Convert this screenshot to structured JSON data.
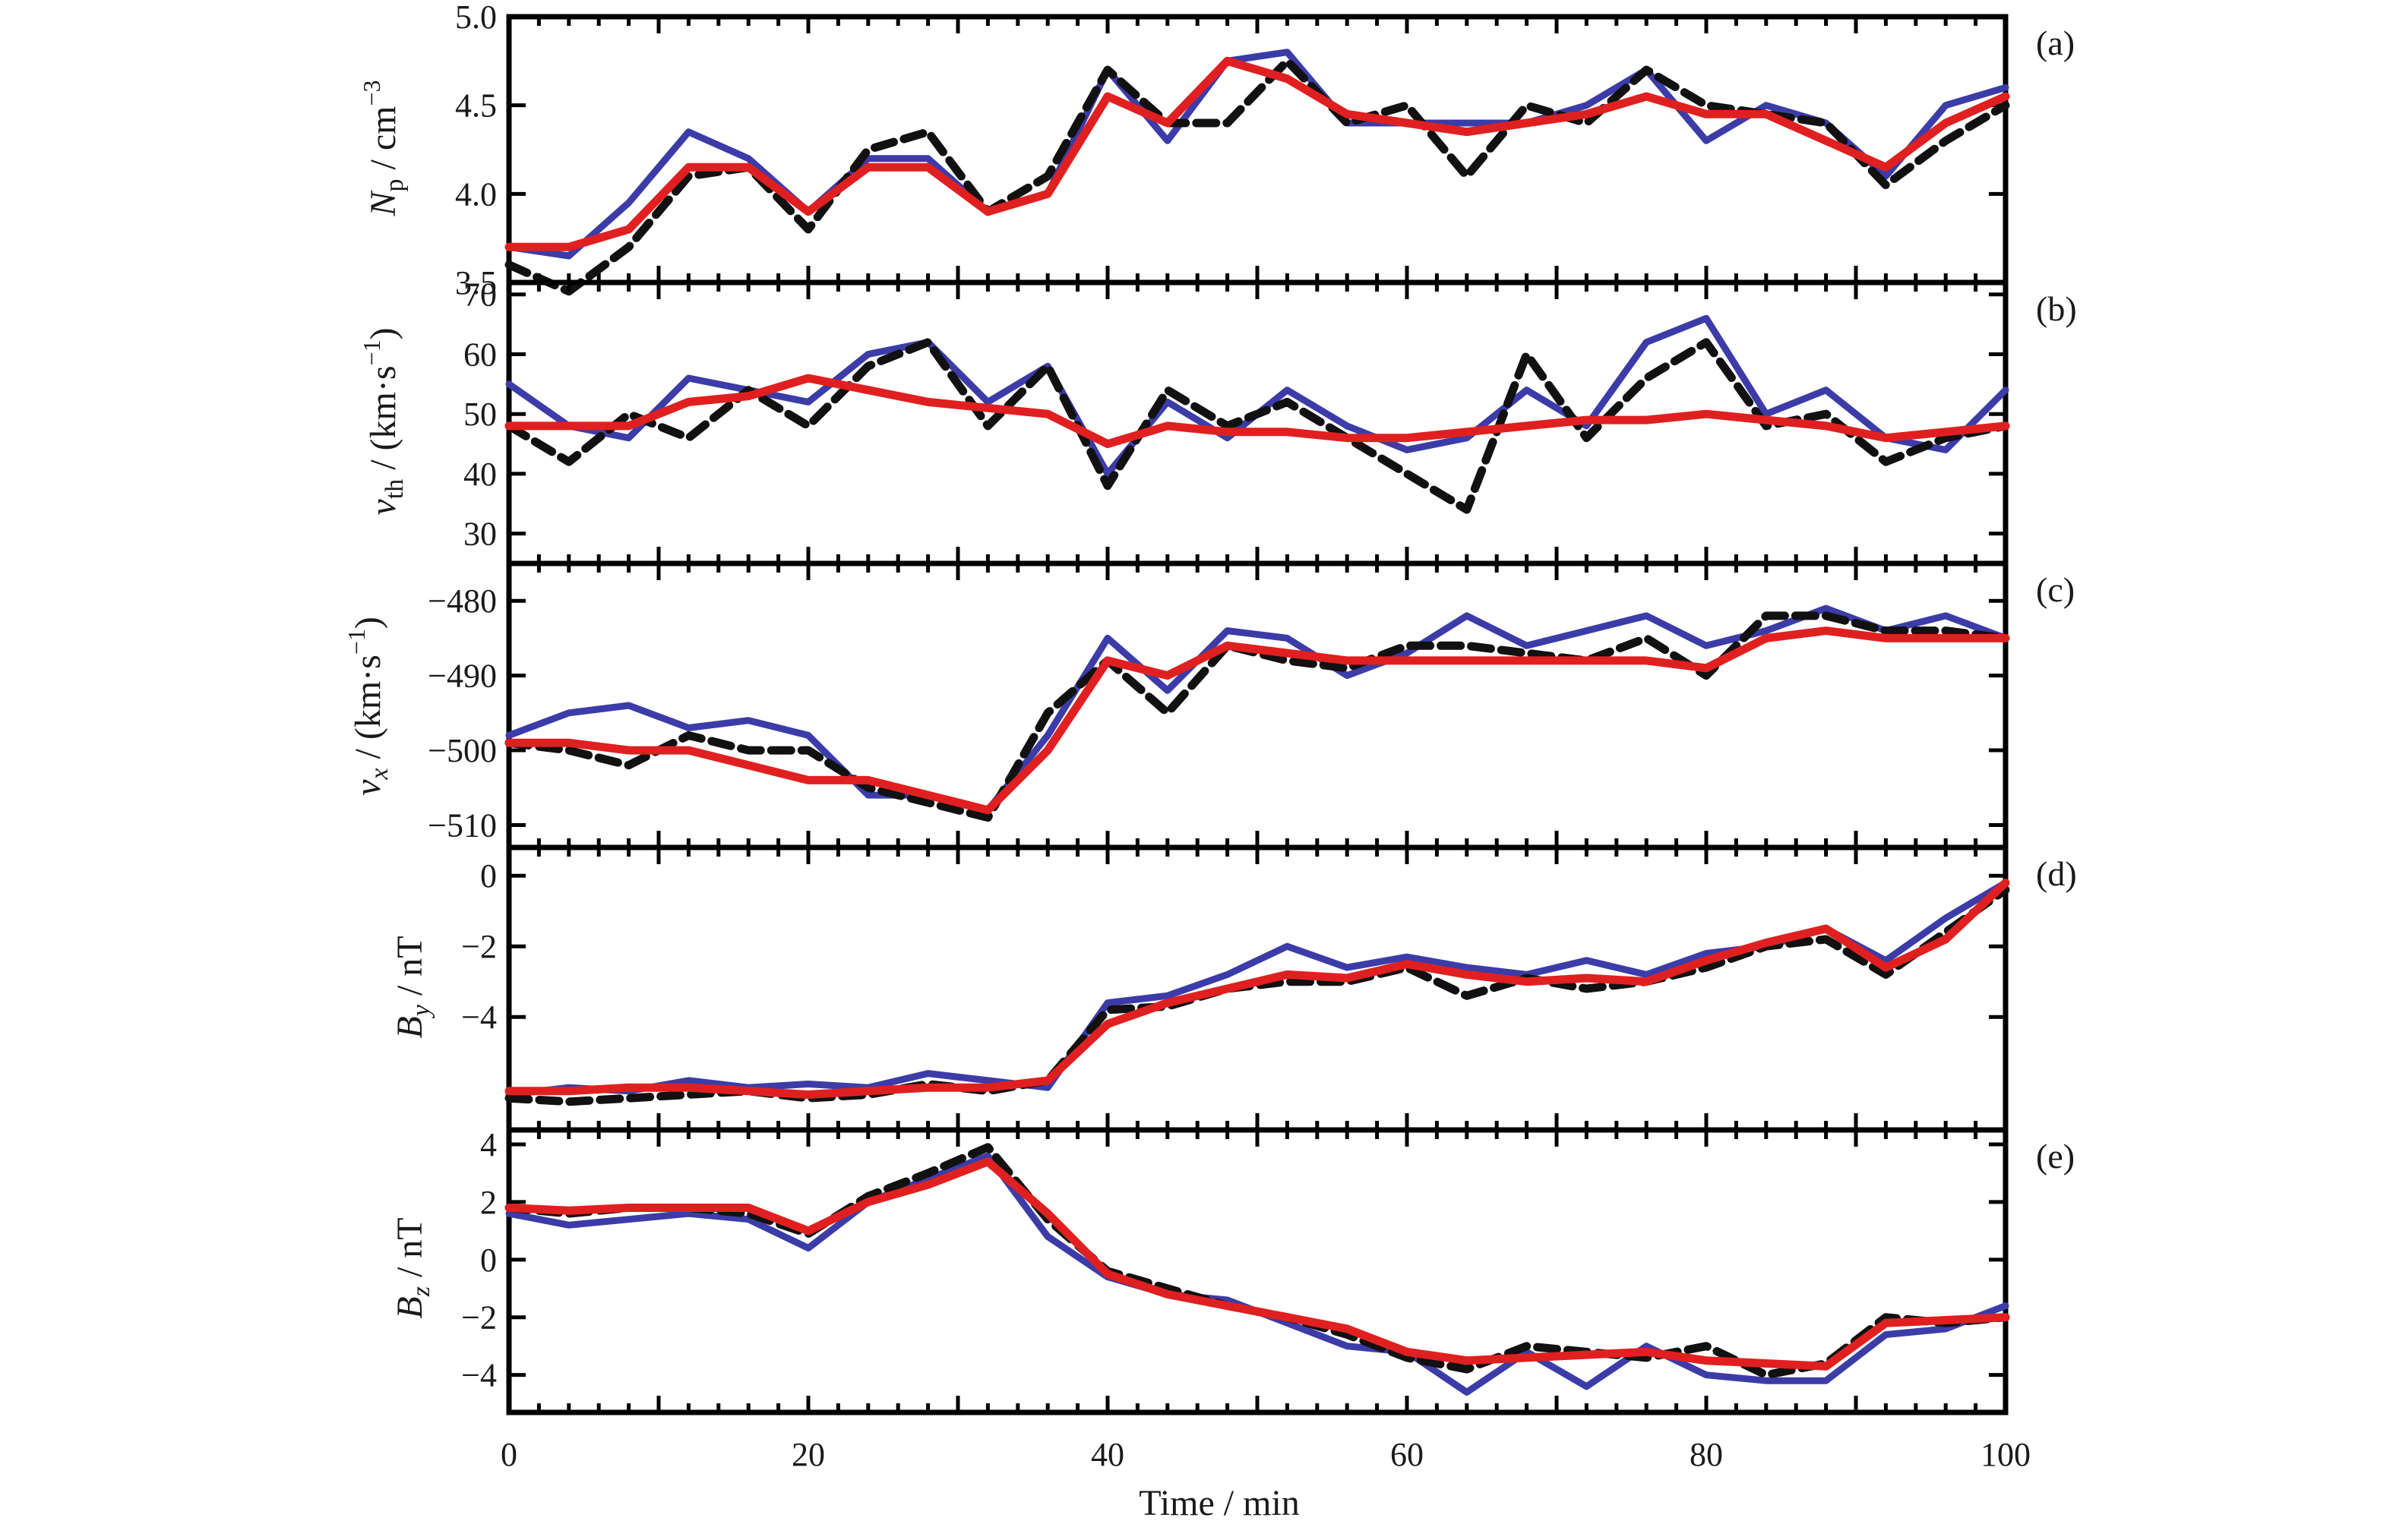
{
  "chart_data": {
    "type": "line",
    "xlabel": "Time / min",
    "xlim": [
      0,
      100
    ],
    "x_ticks": [
      "0",
      "20",
      "40",
      "60",
      "80",
      "100"
    ],
    "x": [
      0,
      4,
      8,
      12,
      16,
      20,
      24,
      28,
      32,
      36,
      40,
      44,
      48,
      52,
      56,
      60,
      64,
      68,
      72,
      76,
      80,
      84,
      88,
      92,
      96,
      100
    ],
    "series_style": [
      {
        "color": "#3c3ca8",
        "dash": "solid"
      },
      {
        "color": "#111111",
        "dash": "dashed"
      },
      {
        "color": "#e02020",
        "dash": "solid"
      }
    ],
    "panels": [
      {
        "tag": "(a)",
        "ylim": [
          3.5,
          5.0
        ],
        "y_ticks": [
          "3.5",
          "4.0",
          "4.5",
          "5.0"
        ],
        "series": [
          {
            "values": [
              3.7,
              3.65,
              3.95,
              4.35,
              4.2,
              3.9,
              4.2,
              4.2,
              3.9,
              4.0,
              4.7,
              4.3,
              4.75,
              4.8,
              4.4,
              4.4,
              4.4,
              4.4,
              4.5,
              4.7,
              4.3,
              4.5,
              4.4,
              4.1,
              4.5,
              4.6
            ]
          },
          {
            "values": [
              3.6,
              3.45,
              3.7,
              4.1,
              4.15,
              3.8,
              4.25,
              4.35,
              3.9,
              4.1,
              4.7,
              4.4,
              4.4,
              4.75,
              4.4,
              4.5,
              4.1,
              4.5,
              4.4,
              4.7,
              4.5,
              4.45,
              4.4,
              4.05,
              4.3,
              4.5
            ]
          },
          {
            "values": [
              3.7,
              3.7,
              3.8,
              4.15,
              4.15,
              3.9,
              4.15,
              4.15,
              3.9,
              4.0,
              4.55,
              4.4,
              4.75,
              4.65,
              4.45,
              4.4,
              4.35,
              4.4,
              4.45,
              4.55,
              4.45,
              4.45,
              4.3,
              4.15,
              4.4,
              4.55
            ]
          }
        ]
      },
      {
        "tag": "(b)",
        "ylim": [
          25,
          72
        ],
        "y_ticks": [
          "30",
          "40",
          "50",
          "60",
          "70"
        ],
        "series": [
          {
            "values": [
              55,
              48,
              46,
              56,
              54,
              52,
              60,
              62,
              52,
              58,
              40,
              52,
              46,
              54,
              48,
              44,
              46,
              54,
              48,
              62,
              66,
              50,
              54,
              46,
              44,
              54
            ]
          },
          {
            "values": [
              48,
              42,
              50,
              46,
              54,
              48,
              58,
              62,
              48,
              58,
              38,
              54,
              48,
              52,
              46,
              40,
              34,
              60,
              46,
              56,
              62,
              48,
              50,
              42,
              46,
              48
            ]
          },
          {
            "values": [
              48,
              48,
              48,
              52,
              53,
              56,
              54,
              52,
              51,
              50,
              45,
              48,
              47,
              47,
              46,
              46,
              47,
              48,
              49,
              49,
              50,
              49,
              48,
              46,
              47,
              48
            ]
          }
        ]
      },
      {
        "tag": "(c)",
        "ylim": [
          -513,
          -475
        ],
        "y_ticks": [
          "−510",
          "−500",
          "−490",
          "−480"
        ],
        "series": [
          {
            "values": [
              -498,
              -495,
              -494,
              -497,
              -496,
              -498,
              -506,
              -506,
              -508,
              -498,
              -485,
              -492,
              -484,
              -485,
              -490,
              -487,
              -482,
              -486,
              -484,
              -482,
              -486,
              -484,
              -481,
              -484,
              -482,
              -485
            ]
          },
          {
            "values": [
              -499,
              -500,
              -502,
              -498,
              -500,
              -500,
              -505,
              -507,
              -509,
              -495,
              -488,
              -495,
              -486,
              -488,
              -489,
              -486,
              -486,
              -487,
              -488,
              -485,
              -490,
              -482,
              -482,
              -484,
              -484,
              -485
            ]
          },
          {
            "values": [
              -499,
              -499,
              -500,
              -500,
              -502,
              -504,
              -504,
              -506,
              -508,
              -500,
              -488,
              -490,
              -486,
              -487,
              -488,
              -488,
              -488,
              -488,
              -488,
              -488,
              -489,
              -485,
              -484,
              -485,
              -485,
              -485
            ]
          }
        ]
      },
      {
        "tag": "(d)",
        "ylim": [
          -7.2,
          0.8
        ],
        "y_ticks": [
          "−4",
          "−2",
          "0"
        ],
        "series": [
          {
            "values": [
              -6.2,
              -6.0,
              -6.1,
              -5.8,
              -6.0,
              -5.9,
              -6.0,
              -5.6,
              -5.8,
              -6.0,
              -3.6,
              -3.4,
              -2.8,
              -2.0,
              -2.6,
              -2.3,
              -2.6,
              -2.8,
              -2.4,
              -2.8,
              -2.2,
              -2.0,
              -1.5,
              -2.4,
              -1.2,
              -0.2
            ]
          },
          {
            "values": [
              -6.3,
              -6.4,
              -6.3,
              -6.2,
              -6.1,
              -6.3,
              -6.2,
              -5.9,
              -6.1,
              -5.8,
              -3.8,
              -3.7,
              -3.2,
              -3.0,
              -3.0,
              -2.6,
              -3.4,
              -2.9,
              -3.2,
              -3.0,
              -2.6,
              -2.0,
              -1.8,
              -2.8,
              -1.6,
              -0.4
            ]
          },
          {
            "values": [
              -6.1,
              -6.1,
              -6.0,
              -6.0,
              -6.1,
              -6.2,
              -6.1,
              -6.0,
              -6.0,
              -5.8,
              -4.2,
              -3.6,
              -3.2,
              -2.8,
              -2.9,
              -2.5,
              -2.8,
              -3.0,
              -2.9,
              -3.0,
              -2.4,
              -1.9,
              -1.5,
              -2.6,
              -1.8,
              -0.2
            ]
          }
        ]
      },
      {
        "tag": "(e)",
        "ylim": [
          -5.3,
          4.5
        ],
        "y_ticks": [
          "−4",
          "−2",
          "0",
          "2",
          "4"
        ],
        "series": [
          {
            "values": [
              1.6,
              1.2,
              1.4,
              1.6,
              1.4,
              0.4,
              2.0,
              2.8,
              3.6,
              0.8,
              -0.6,
              -1.2,
              -1.4,
              -2.2,
              -3.0,
              -3.2,
              -4.6,
              -3.2,
              -4.4,
              -3.0,
              -4.0,
              -4.2,
              -4.2,
              -2.6,
              -2.4,
              -1.6
            ]
          },
          {
            "values": [
              1.8,
              1.6,
              1.8,
              1.8,
              1.6,
              0.9,
              2.2,
              3.0,
              3.9,
              1.4,
              -0.4,
              -1.0,
              -1.6,
              -2.0,
              -2.6,
              -3.4,
              -3.8,
              -3.0,
              -3.2,
              -3.4,
              -3.0,
              -4.0,
              -3.6,
              -2.0,
              -2.2,
              -2.0
            ]
          },
          {
            "values": [
              1.8,
              1.7,
              1.8,
              1.8,
              1.8,
              1.0,
              2.0,
              2.6,
              3.4,
              1.6,
              -0.5,
              -1.2,
              -1.6,
              -2.0,
              -2.4,
              -3.2,
              -3.5,
              -3.4,
              -3.3,
              -3.2,
              -3.5,
              -3.6,
              -3.7,
              -2.2,
              -2.1,
              -2.0
            ]
          }
        ]
      }
    ]
  },
  "axis_labels": {
    "a": {
      "main": "N",
      "sub": "p",
      "unit": " / cm",
      "sup": "−3"
    },
    "b": {
      "main": "v",
      "sub": "th",
      "unit": " / (km·s",
      "sup": "−1",
      "close": ")"
    },
    "c": {
      "main": "v",
      "sub": "x",
      "unit": " / (km·s",
      "sup": "−1",
      "close": ")"
    },
    "d": {
      "main": "B",
      "sub": "y",
      "unit": " / nT"
    },
    "e": {
      "main": "B",
      "sub": "z",
      "unit": " / nT"
    }
  }
}
